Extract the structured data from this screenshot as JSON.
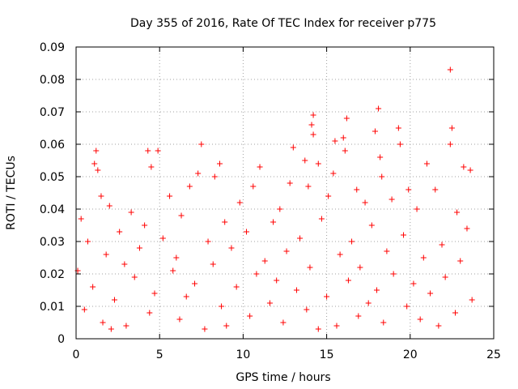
{
  "chart_data": {
    "type": "scatter",
    "title": "Day 355 of 2016, Rate Of TEC Index for receiver p775",
    "xlabel": "GPS time / hours",
    "ylabel": "ROTI / TECUs",
    "xlim": [
      0,
      25
    ],
    "ylim": [
      0,
      0.09
    ],
    "xticks": [
      0,
      5,
      10,
      15,
      20,
      25
    ],
    "yticks": [
      0,
      0.01,
      0.02,
      0.03,
      0.04,
      0.05,
      0.06,
      0.07,
      0.08,
      0.09
    ],
    "xtick_labels": [
      "0",
      "5",
      "10",
      "15",
      "20",
      "25"
    ],
    "ytick_labels": [
      "0",
      "0.01",
      "0.02",
      "0.03",
      "0.04",
      "0.05",
      "0.06",
      "0.07",
      "0.08",
      "0.09"
    ],
    "grid": true,
    "marker": "+",
    "color": "#ff0000",
    "data_x_range": [
      0,
      23.8
    ],
    "density_note": "dense scatter; bulk of points between 0.005 and 0.03 TECU, spikes to 0.06-0.07",
    "series": [
      {
        "name": "ROTI",
        "points": [
          [
            22.4,
            0.083
          ],
          [
            18.1,
            0.071
          ],
          [
            14.2,
            0.069
          ],
          [
            16.2,
            0.068
          ],
          [
            14.1,
            0.066
          ],
          [
            19.3,
            0.065
          ],
          [
            22.5,
            0.065
          ],
          [
            17.9,
            0.064
          ],
          [
            14.2,
            0.063
          ],
          [
            16.0,
            0.062
          ],
          [
            15.5,
            0.061
          ],
          [
            22.4,
            0.06
          ],
          [
            7.5,
            0.06
          ],
          [
            19.4,
            0.06
          ],
          [
            13.0,
            0.059
          ],
          [
            1.2,
            0.058
          ],
          [
            4.3,
            0.058
          ],
          [
            4.9,
            0.058
          ],
          [
            16.1,
            0.058
          ],
          [
            18.2,
            0.056
          ],
          [
            13.7,
            0.055
          ],
          [
            8.6,
            0.054
          ],
          [
            1.1,
            0.054
          ],
          [
            14.5,
            0.054
          ],
          [
            23.2,
            0.053
          ],
          [
            11.0,
            0.053
          ],
          [
            4.5,
            0.053
          ],
          [
            1.3,
            0.052
          ],
          [
            21.0,
            0.054
          ],
          [
            23.6,
            0.052
          ],
          [
            7.3,
            0.051
          ],
          [
            18.3,
            0.05
          ],
          [
            8.3,
            0.05
          ],
          [
            15.4,
            0.051
          ],
          [
            12.8,
            0.048
          ],
          [
            6.8,
            0.047
          ],
          [
            13.9,
            0.047
          ],
          [
            19.9,
            0.046
          ],
          [
            16.8,
            0.046
          ],
          [
            10.6,
            0.047
          ],
          [
            21.5,
            0.046
          ],
          [
            5.6,
            0.044
          ],
          [
            1.5,
            0.044
          ],
          [
            15.1,
            0.044
          ],
          [
            18.9,
            0.043
          ],
          [
            9.8,
            0.042
          ],
          [
            17.3,
            0.042
          ],
          [
            2.0,
            0.041
          ],
          [
            12.2,
            0.04
          ],
          [
            20.4,
            0.04
          ],
          [
            3.3,
            0.039
          ],
          [
            6.3,
            0.038
          ],
          [
            22.8,
            0.039
          ],
          [
            0.3,
            0.037
          ],
          [
            14.7,
            0.037
          ],
          [
            8.9,
            0.036
          ],
          [
            11.8,
            0.036
          ],
          [
            4.1,
            0.035
          ],
          [
            17.7,
            0.035
          ],
          [
            23.4,
            0.034
          ],
          [
            2.6,
            0.033
          ],
          [
            10.2,
            0.033
          ],
          [
            19.6,
            0.032
          ],
          [
            5.2,
            0.031
          ],
          [
            13.4,
            0.031
          ],
          [
            0.7,
            0.03
          ],
          [
            7.9,
            0.03
          ],
          [
            16.5,
            0.03
          ],
          [
            21.9,
            0.029
          ],
          [
            3.8,
            0.028
          ],
          [
            9.3,
            0.028
          ],
          [
            12.6,
            0.027
          ],
          [
            18.6,
            0.027
          ],
          [
            1.8,
            0.026
          ],
          [
            15.8,
            0.026
          ],
          [
            6.0,
            0.025
          ],
          [
            20.8,
            0.025
          ],
          [
            11.3,
            0.024
          ],
          [
            23.0,
            0.024
          ],
          [
            2.9,
            0.023
          ],
          [
            8.2,
            0.023
          ],
          [
            14.0,
            0.022
          ],
          [
            17.0,
            0.022
          ],
          [
            0.1,
            0.021
          ],
          [
            5.8,
            0.021
          ],
          [
            10.8,
            0.02
          ],
          [
            19.0,
            0.02
          ],
          [
            22.1,
            0.019
          ],
          [
            3.5,
            0.019
          ],
          [
            12.0,
            0.018
          ],
          [
            16.3,
            0.018
          ],
          [
            7.1,
            0.017
          ],
          [
            20.2,
            0.017
          ],
          [
            1.0,
            0.016
          ],
          [
            9.6,
            0.016
          ],
          [
            13.2,
            0.015
          ],
          [
            18.0,
            0.015
          ],
          [
            4.7,
            0.014
          ],
          [
            21.2,
            0.014
          ],
          [
            6.6,
            0.013
          ],
          [
            15.0,
            0.013
          ],
          [
            23.7,
            0.012
          ],
          [
            2.3,
            0.012
          ],
          [
            11.6,
            0.011
          ],
          [
            17.5,
            0.011
          ],
          [
            8.7,
            0.01
          ],
          [
            19.8,
            0.01
          ],
          [
            0.5,
            0.009
          ],
          [
            13.8,
            0.009
          ],
          [
            22.7,
            0.008
          ],
          [
            4.4,
            0.008
          ],
          [
            10.4,
            0.007
          ],
          [
            16.9,
            0.007
          ],
          [
            6.2,
            0.006
          ],
          [
            20.6,
            0.006
          ],
          [
            1.6,
            0.005
          ],
          [
            12.4,
            0.005
          ],
          [
            18.4,
            0.005
          ],
          [
            3.0,
            0.004
          ],
          [
            9.0,
            0.004
          ],
          [
            15.6,
            0.004
          ],
          [
            21.7,
            0.004
          ],
          [
            7.7,
            0.003
          ],
          [
            14.5,
            0.003
          ],
          [
            2.1,
            0.003
          ]
        ]
      }
    ]
  }
}
